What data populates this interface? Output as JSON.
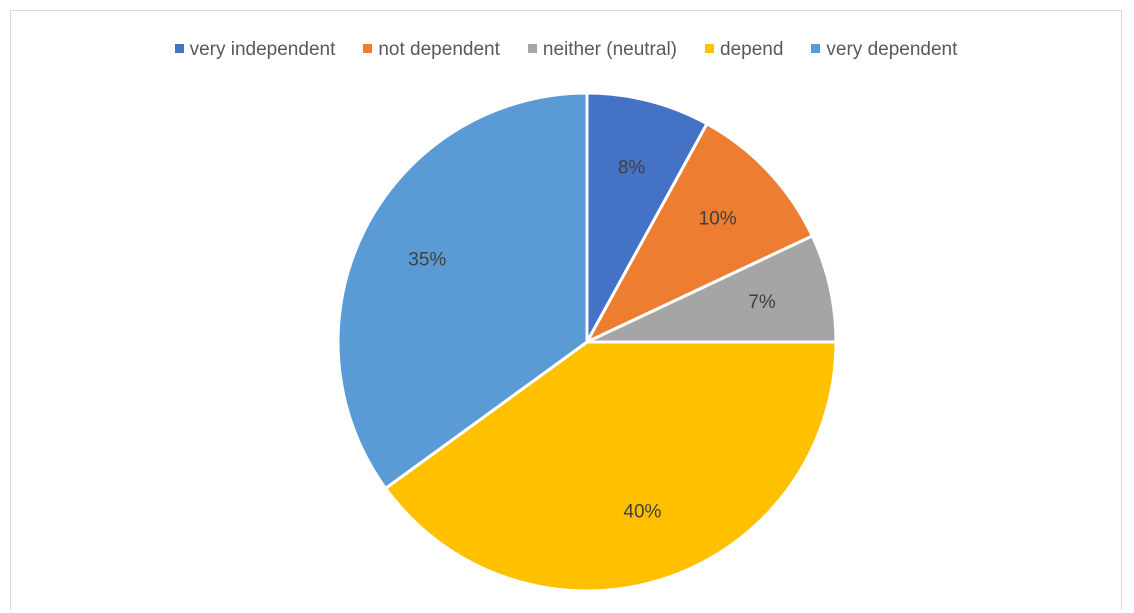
{
  "chart_data": {
    "type": "pie",
    "title": "",
    "legend_position": "top",
    "start_angle_degrees": 0,
    "direction": "clockwise",
    "slices": [
      {
        "label": "very independent",
        "value": 8,
        "value_label": "8%",
        "color": "#4472C4"
      },
      {
        "label": "not dependent",
        "value": 10,
        "value_label": "10%",
        "color": "#ED7D31"
      },
      {
        "label": "neither (neutral)",
        "value": 7,
        "value_label": "7%",
        "color": "#A5A5A5"
      },
      {
        "label": "depend",
        "value": 40,
        "value_label": "40%",
        "color": "#FFC000"
      },
      {
        "label": "very dependent",
        "value": 35,
        "value_label": "35%",
        "color": "#5B9BD5"
      }
    ]
  }
}
